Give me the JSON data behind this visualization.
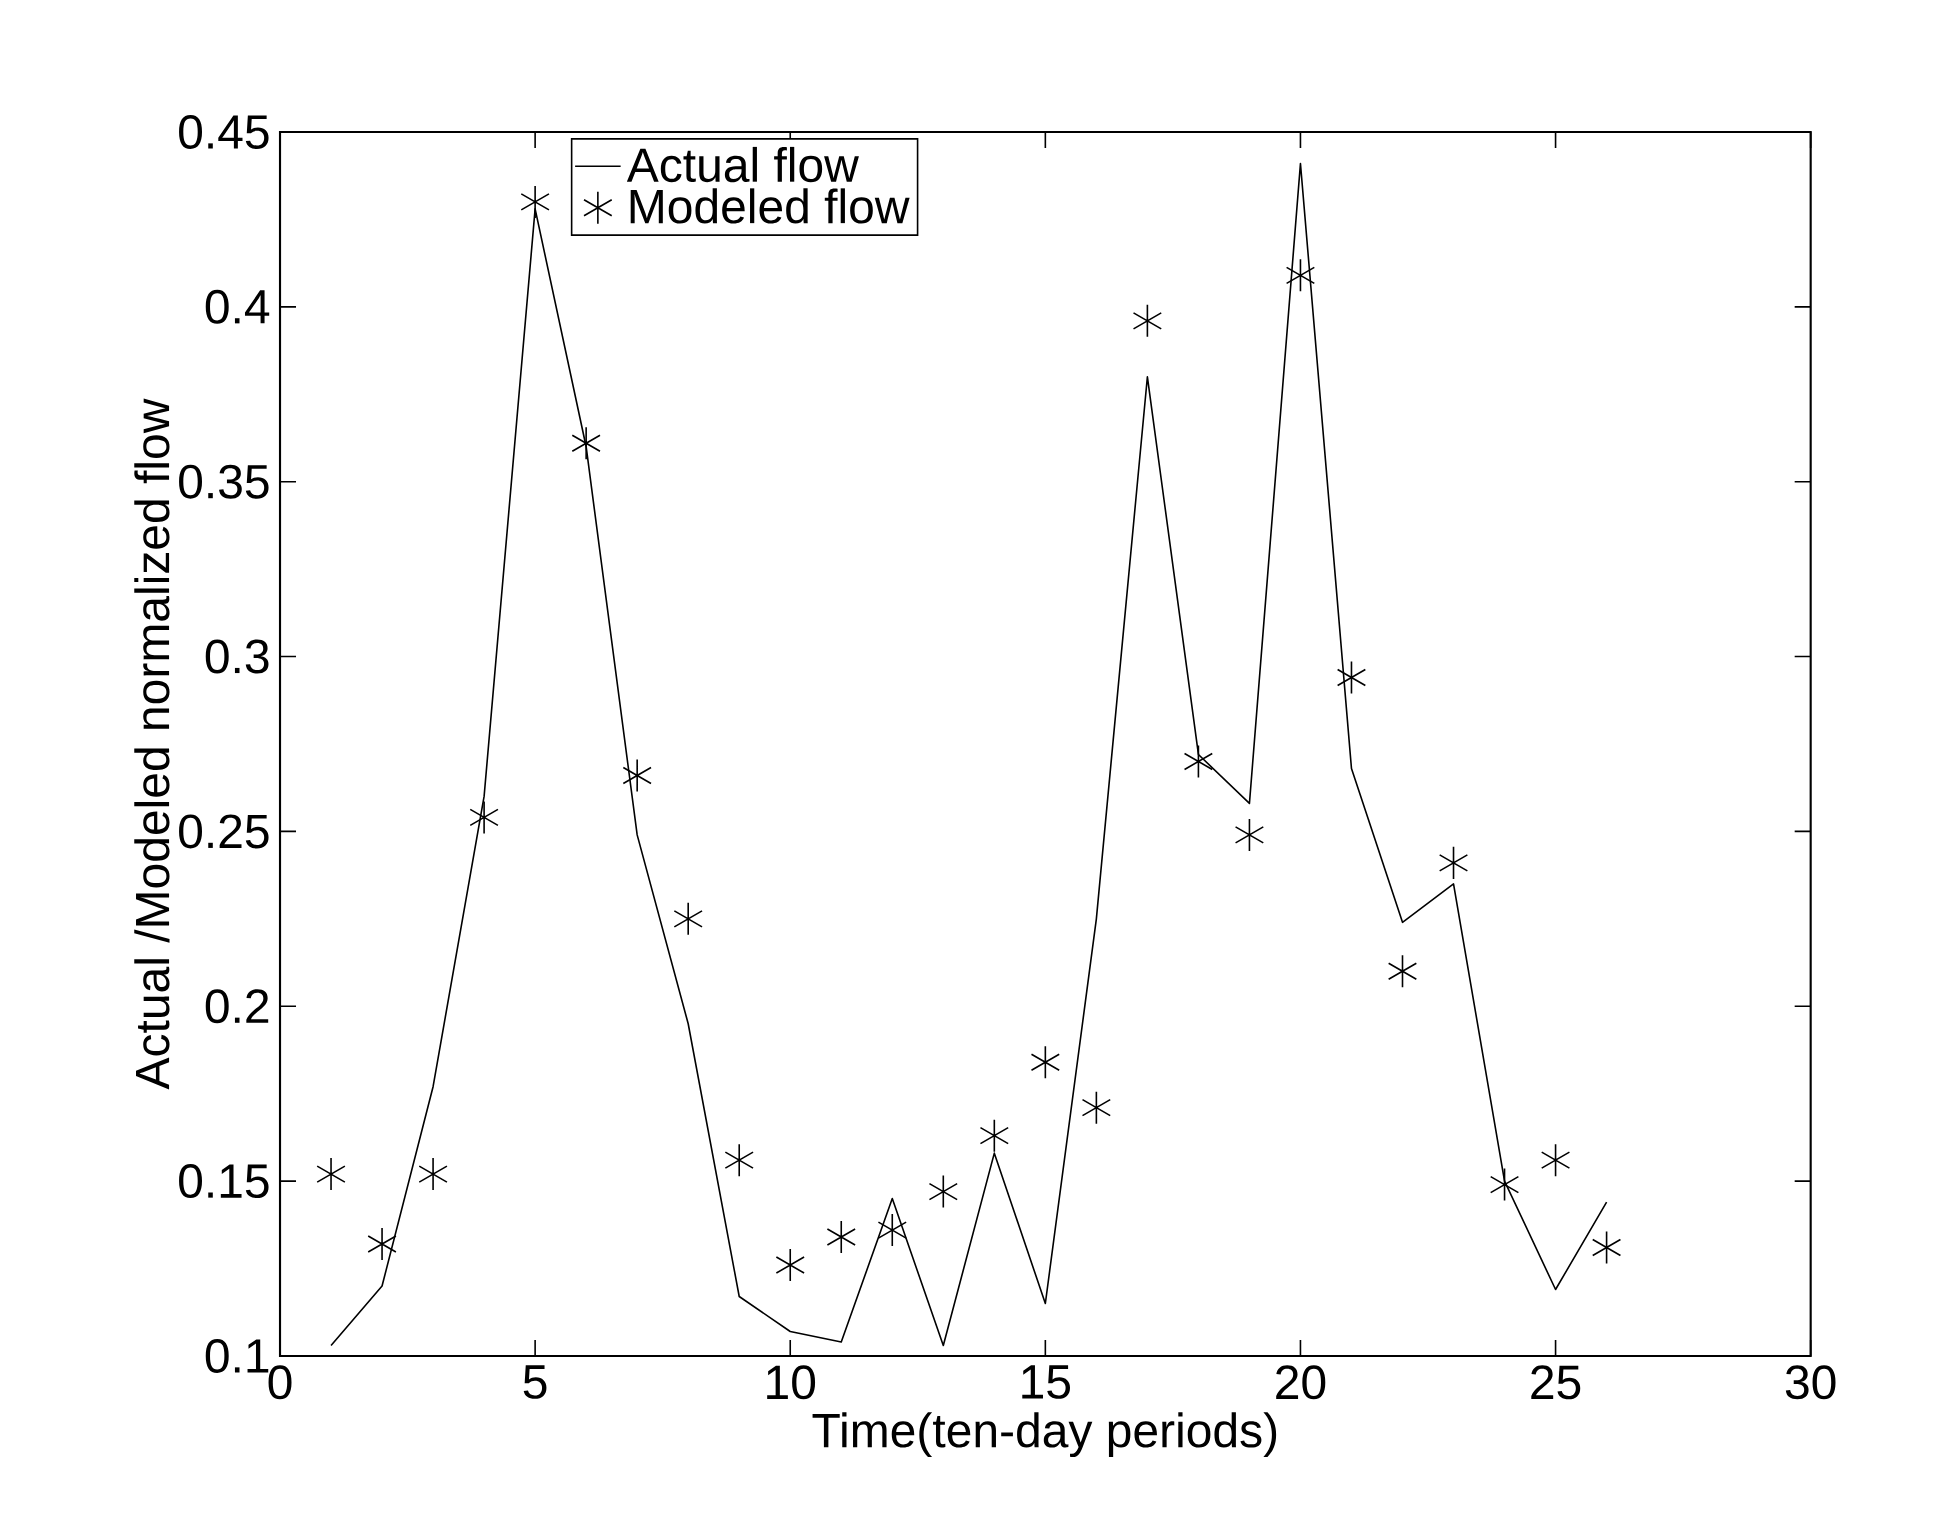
{
  "chart_data": {
    "type": "line",
    "xlabel": "Time(ten-day periods)",
    "ylabel": "Actual /Modeled normalized flow",
    "x": [
      1,
      2,
      3,
      4,
      5,
      6,
      7,
      8,
      9,
      10,
      11,
      12,
      13,
      14,
      15,
      16,
      17,
      18,
      19,
      20,
      21,
      22,
      23,
      24,
      25,
      26
    ],
    "series": [
      {
        "name": "Actual flow",
        "color": "#000000",
        "marker": "none",
        "line_style": "solid",
        "values": [
          0.103,
          0.12,
          0.177,
          0.26,
          0.428,
          0.36,
          0.249,
          0.195,
          0.117,
          0.107,
          0.104,
          0.145,
          0.103,
          0.158,
          0.115,
          0.225,
          0.38,
          0.272,
          0.258,
          0.441,
          0.268,
          0.224,
          0.235,
          0.15,
          0.119,
          0.144
        ]
      },
      {
        "name": "Modeled flow",
        "color": "#000000",
        "type": "scatter",
        "marker": "cross",
        "values": [
          0.152,
          0.132,
          0.152,
          0.254,
          0.43,
          0.361,
          0.266,
          0.225,
          0.156,
          0.126,
          0.134,
          0.136,
          0.147,
          0.163,
          0.184,
          0.171,
          0.396,
          0.27,
          0.249,
          0.409,
          0.294,
          0.21,
          0.241,
          0.149,
          0.156,
          0.131
        ]
      }
    ],
    "xlim": [
      0,
      30
    ],
    "ylim": [
      0.1,
      0.45
    ],
    "xticks": [
      0,
      5,
      10,
      15,
      20,
      25,
      30
    ],
    "yticks": [
      0.1,
      0.15,
      0.2,
      0.25,
      0.3,
      0.35,
      0.4,
      0.45
    ],
    "grid": false,
    "legend": "top left"
  }
}
